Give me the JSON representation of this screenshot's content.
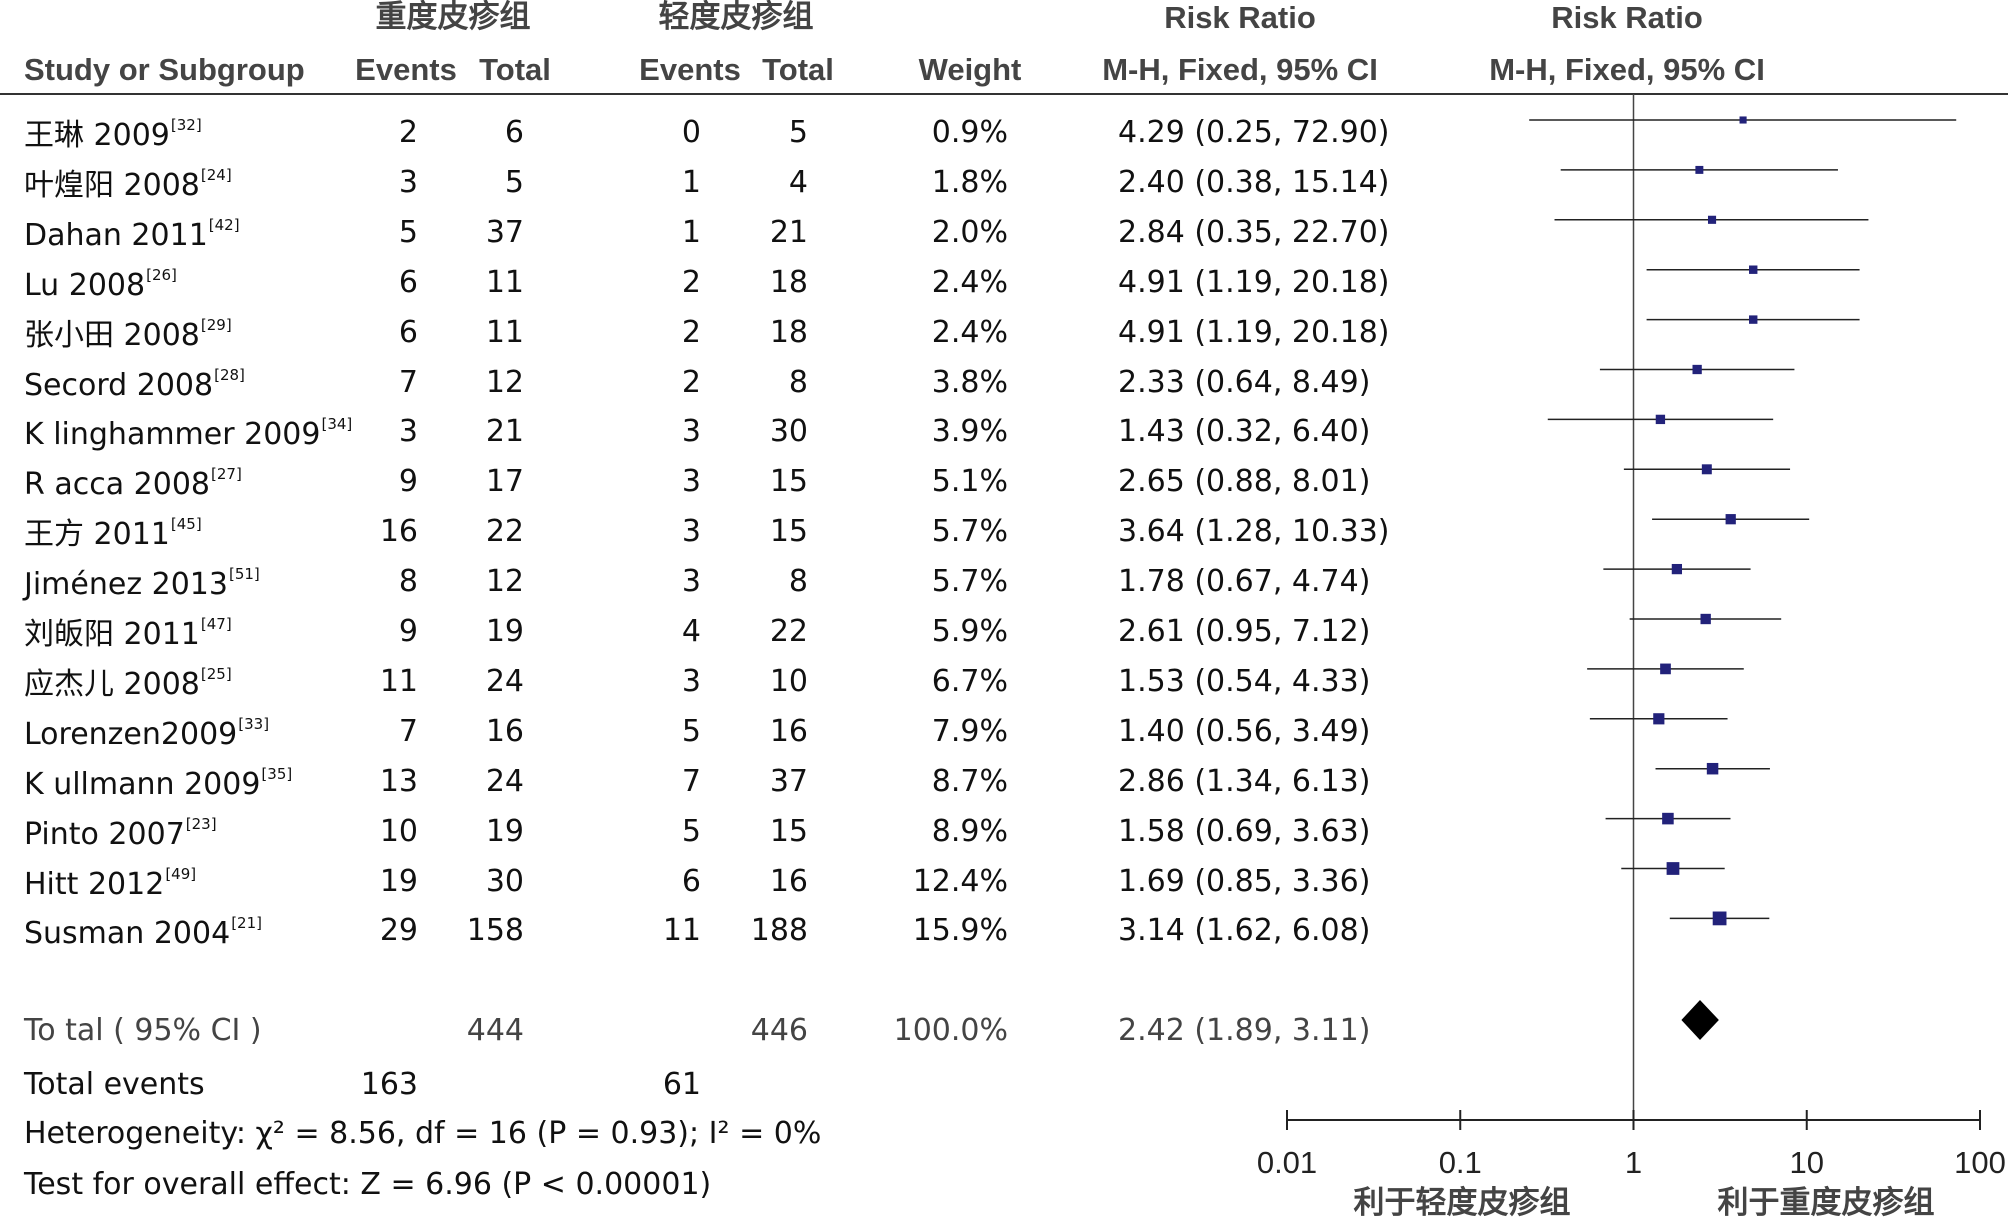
{
  "header": {
    "group1": "重度皮疹组",
    "group2": "轻度皮疹组",
    "rr_top": "Risk Ratio",
    "rr_plot_top": "Risk Ratio",
    "study_col": "Study or Subgroup",
    "events1": "Events",
    "total1": "Total",
    "events2": "Events",
    "total2": "Total",
    "weight": "Weight",
    "rr_method": "M-H, Fixed, 95% CI",
    "rr_plot_method": "M-H, Fixed, 95% CI"
  },
  "studies": [
    {
      "name": "王琳 2009",
      "ref": "[32]",
      "e1": "2",
      "t1": "6",
      "e2": "0",
      "t2": "5",
      "weight": "0.9%",
      "ci_text": "4.29 (0.25, 72.90)"
    },
    {
      "name": "叶煌阳 2008",
      "ref": "[24]",
      "e1": "3",
      "t1": "5",
      "e2": "1",
      "t2": "4",
      "weight": "1.8%",
      "ci_text": "2.40 (0.38, 15.14)"
    },
    {
      "name": "Dahan 2011",
      "ref": "[42]",
      "e1": "5",
      "t1": "37",
      "e2": "1",
      "t2": "21",
      "weight": "2.0%",
      "ci_text": "2.84 (0.35, 22.70)"
    },
    {
      "name": "Lu 2008",
      "ref": "[26]",
      "e1": "6",
      "t1": "11",
      "e2": "2",
      "t2": "18",
      "weight": "2.4%",
      "ci_text": "4.91 (1.19, 20.18)"
    },
    {
      "name": "张小田 2008",
      "ref": "[29]",
      "e1": "6",
      "t1": "11",
      "e2": "2",
      "t2": "18",
      "weight": "2.4%",
      "ci_text": "4.91 (1.19, 20.18)"
    },
    {
      "name": "Secord 2008",
      "ref": "[28]",
      "e1": "7",
      "t1": "12",
      "e2": "2",
      "t2": "8",
      "weight": "3.8%",
      "ci_text": "2.33 (0.64, 8.49)"
    },
    {
      "name": "K linghammer 2009",
      "ref": "[34]",
      "e1": "3",
      "t1": "21",
      "e2": "3",
      "t2": "30",
      "weight": "3.9%",
      "ci_text": "1.43 (0.32, 6.40)"
    },
    {
      "name": "R acca 2008",
      "ref": "[27]",
      "e1": "9",
      "t1": "17",
      "e2": "3",
      "t2": "15",
      "weight": "5.1%",
      "ci_text": "2.65 (0.88, 8.01)"
    },
    {
      "name": "王方 2011",
      "ref": "[45]",
      "e1": "16",
      "t1": "22",
      "e2": "3",
      "t2": "15",
      "weight": "5.7%",
      "ci_text": "3.64 (1.28, 10.33)"
    },
    {
      "name": "Jiménez 2013",
      "ref": "[51]",
      "e1": "8",
      "t1": "12",
      "e2": "3",
      "t2": "8",
      "weight": "5.7%",
      "ci_text": "1.78 (0.67, 4.74)"
    },
    {
      "name": "刘皈阳 2011",
      "ref": "[47]",
      "e1": "9",
      "t1": "19",
      "e2": "4",
      "t2": "22",
      "weight": "5.9%",
      "ci_text": "2.61 (0.95, 7.12)"
    },
    {
      "name": "应杰儿 2008",
      "ref": "[25]",
      "e1": "11",
      "t1": "24",
      "e2": "3",
      "t2": "10",
      "weight": "6.7%",
      "ci_text": "1.53 (0.54, 4.33)"
    },
    {
      "name": "Lorenzen2009",
      "ref": "[33]",
      "e1": "7",
      "t1": "16",
      "e2": "5",
      "t2": "16",
      "weight": "7.9%",
      "ci_text": "1.40 (0.56, 3.49)"
    },
    {
      "name": "K ullmann 2009",
      "ref": "[35]",
      "e1": "13",
      "t1": "24",
      "e2": "7",
      "t2": "37",
      "weight": "8.7%",
      "ci_text": "2.86 (1.34, 6.13)"
    },
    {
      "name": "Pinto 2007",
      "ref": "[23]",
      "e1": "10",
      "t1": "19",
      "e2": "5",
      "t2": "15",
      "weight": "8.9%",
      "ci_text": "1.58 (0.69, 3.63)"
    },
    {
      "name": "Hitt 2012",
      "ref": "[49]",
      "e1": "19",
      "t1": "30",
      "e2": "6",
      "t2": "16",
      "weight": "12.4%",
      "ci_text": "1.69 (0.85, 3.36)"
    },
    {
      "name": "Susman 2004",
      "ref": "[21]",
      "e1": "29",
      "t1": "158",
      "e2": "11",
      "t2": "188",
      "weight": "15.9%",
      "ci_text": "3.14 (1.62, 6.08)"
    }
  ],
  "total": {
    "label": "To tal ( 95% CI )",
    "t1": "444",
    "t2": "446",
    "weight": "100.0%",
    "ci_text": "2.42 (1.89, 3.11)"
  },
  "total_events": {
    "label": "Total events",
    "e1": "163",
    "e2": "61"
  },
  "heterogeneity": "Heterogeneity: χ² = 8.56, df = 16 (P = 0.93); I² = 0%",
  "overall_effect": "Test for overall effect: Z = 6.96 (P < 0.00001)",
  "axis": {
    "ticks": [
      "0.01",
      "0.1",
      "1",
      "10",
      "100"
    ],
    "favours_left": "利于轻度皮疹组",
    "favours_right": "利于重度皮疹组"
  },
  "colors": {
    "marker": "#22227a",
    "line": "#222222",
    "diamond": "#000000"
  },
  "chart_data": {
    "type": "forest",
    "scale": "log",
    "xlim": [
      0.01,
      100
    ],
    "null_line": 1,
    "studies": [
      {
        "rr": 4.29,
        "lo": 0.25,
        "hi": 72.9,
        "weight": 0.9
      },
      {
        "rr": 2.4,
        "lo": 0.38,
        "hi": 15.14,
        "weight": 1.8
      },
      {
        "rr": 2.84,
        "lo": 0.35,
        "hi": 22.7,
        "weight": 2.0
      },
      {
        "rr": 4.91,
        "lo": 1.19,
        "hi": 20.18,
        "weight": 2.4
      },
      {
        "rr": 4.91,
        "lo": 1.19,
        "hi": 20.18,
        "weight": 2.4
      },
      {
        "rr": 2.33,
        "lo": 0.64,
        "hi": 8.49,
        "weight": 3.8
      },
      {
        "rr": 1.43,
        "lo": 0.32,
        "hi": 6.4,
        "weight": 3.9
      },
      {
        "rr": 2.65,
        "lo": 0.88,
        "hi": 8.01,
        "weight": 5.1
      },
      {
        "rr": 3.64,
        "lo": 1.28,
        "hi": 10.33,
        "weight": 5.7
      },
      {
        "rr": 1.78,
        "lo": 0.67,
        "hi": 4.74,
        "weight": 5.7
      },
      {
        "rr": 2.61,
        "lo": 0.95,
        "hi": 7.12,
        "weight": 5.9
      },
      {
        "rr": 1.53,
        "lo": 0.54,
        "hi": 4.33,
        "weight": 6.7
      },
      {
        "rr": 1.4,
        "lo": 0.56,
        "hi": 3.49,
        "weight": 7.9
      },
      {
        "rr": 2.86,
        "lo": 1.34,
        "hi": 6.13,
        "weight": 8.7
      },
      {
        "rr": 1.58,
        "lo": 0.69,
        "hi": 3.63,
        "weight": 8.9
      },
      {
        "rr": 1.69,
        "lo": 0.85,
        "hi": 3.36,
        "weight": 12.4
      },
      {
        "rr": 3.14,
        "lo": 1.62,
        "hi": 6.08,
        "weight": 15.9
      }
    ],
    "pooled": {
      "rr": 2.42,
      "lo": 1.89,
      "hi": 3.11
    }
  }
}
